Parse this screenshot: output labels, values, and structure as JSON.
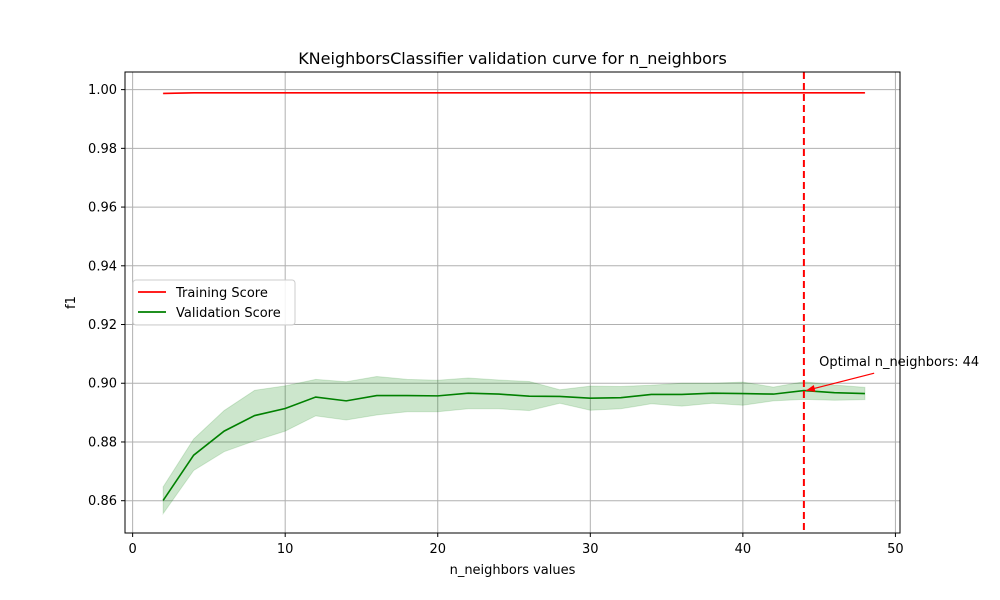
{
  "chart_data": {
    "type": "line",
    "title": "KNeighborsClassifier validation curve for n_neighbors",
    "xlabel": "n_neighbors values",
    "ylabel": "f1",
    "xlim": [
      -0.5,
      50.3
    ],
    "ylim": [
      0.849,
      1.006
    ],
    "xticks": [
      0,
      10,
      20,
      30,
      40,
      50
    ],
    "yticks": [
      0.86,
      0.88,
      0.9,
      0.92,
      0.94,
      0.96,
      0.98,
      1.0
    ],
    "xtick_labels": [
      "0",
      "10",
      "20",
      "30",
      "40",
      "50"
    ],
    "ytick_labels": [
      "0.86",
      "0.88",
      "0.90",
      "0.92",
      "0.94",
      "0.96",
      "0.98",
      "1.00"
    ],
    "grid": true,
    "legend_position": "center-left",
    "x": [
      2,
      4,
      6,
      8,
      10,
      12,
      14,
      16,
      18,
      20,
      22,
      24,
      26,
      28,
      30,
      32,
      34,
      36,
      38,
      40,
      42,
      44,
      46,
      48
    ],
    "series": [
      {
        "name": "Training Score",
        "color": "#ff0000",
        "values": [
          0.9987,
          0.9989,
          0.9989,
          0.9989,
          0.9989,
          0.9989,
          0.9989,
          0.9989,
          0.9989,
          0.9989,
          0.9989,
          0.9989,
          0.9989,
          0.9989,
          0.9989,
          0.9989,
          0.9989,
          0.9989,
          0.9989,
          0.9989,
          0.9989,
          0.9989,
          0.9989,
          0.9989
        ],
        "band_lower": [
          0.9986,
          0.9988,
          0.9988,
          0.9988,
          0.9988,
          0.9988,
          0.9988,
          0.9988,
          0.9988,
          0.9988,
          0.9988,
          0.9988,
          0.9988,
          0.9988,
          0.9988,
          0.9988,
          0.9988,
          0.9988,
          0.9988,
          0.9988,
          0.9988,
          0.9988,
          0.9988,
          0.9988
        ],
        "band_upper": [
          0.9988,
          0.999,
          0.999,
          0.999,
          0.999,
          0.999,
          0.999,
          0.999,
          0.999,
          0.999,
          0.999,
          0.999,
          0.999,
          0.999,
          0.999,
          0.999,
          0.999,
          0.999,
          0.999,
          0.999,
          0.999,
          0.999,
          0.999,
          0.999
        ]
      },
      {
        "name": "Validation Score",
        "color": "#008000",
        "band_color": "#008000",
        "values": [
          0.8601,
          0.8755,
          0.8837,
          0.889,
          0.8914,
          0.8953,
          0.894,
          0.8958,
          0.8958,
          0.8957,
          0.8966,
          0.8963,
          0.8956,
          0.8955,
          0.8949,
          0.8951,
          0.8962,
          0.8962,
          0.8966,
          0.8965,
          0.8963,
          0.8975,
          0.8968,
          0.8965
        ],
        "band_lower": [
          0.8556,
          0.8703,
          0.8767,
          0.8804,
          0.8837,
          0.8889,
          0.8875,
          0.8892,
          0.8903,
          0.8903,
          0.8913,
          0.8913,
          0.8907,
          0.8932,
          0.8908,
          0.8913,
          0.893,
          0.8922,
          0.8932,
          0.8925,
          0.894,
          0.8945,
          0.8942,
          0.8944
        ],
        "band_upper": [
          0.8647,
          0.881,
          0.8907,
          0.8976,
          0.8991,
          0.9013,
          0.9005,
          0.9023,
          0.9013,
          0.901,
          0.9018,
          0.9011,
          0.9006,
          0.8978,
          0.899,
          0.8989,
          0.8993,
          0.9,
          0.9,
          0.9004,
          0.8987,
          0.9005,
          0.8994,
          0.8986
        ]
      }
    ],
    "vline": {
      "x": 44,
      "color": "#ff0000",
      "style": "dashed"
    },
    "annotation": {
      "text": "Optimal n_neighbors: 44",
      "point": [
        44,
        0.8975
      ],
      "text_anchor": [
        45,
        0.9075
      ],
      "arrow_color": "#ff0000"
    }
  }
}
